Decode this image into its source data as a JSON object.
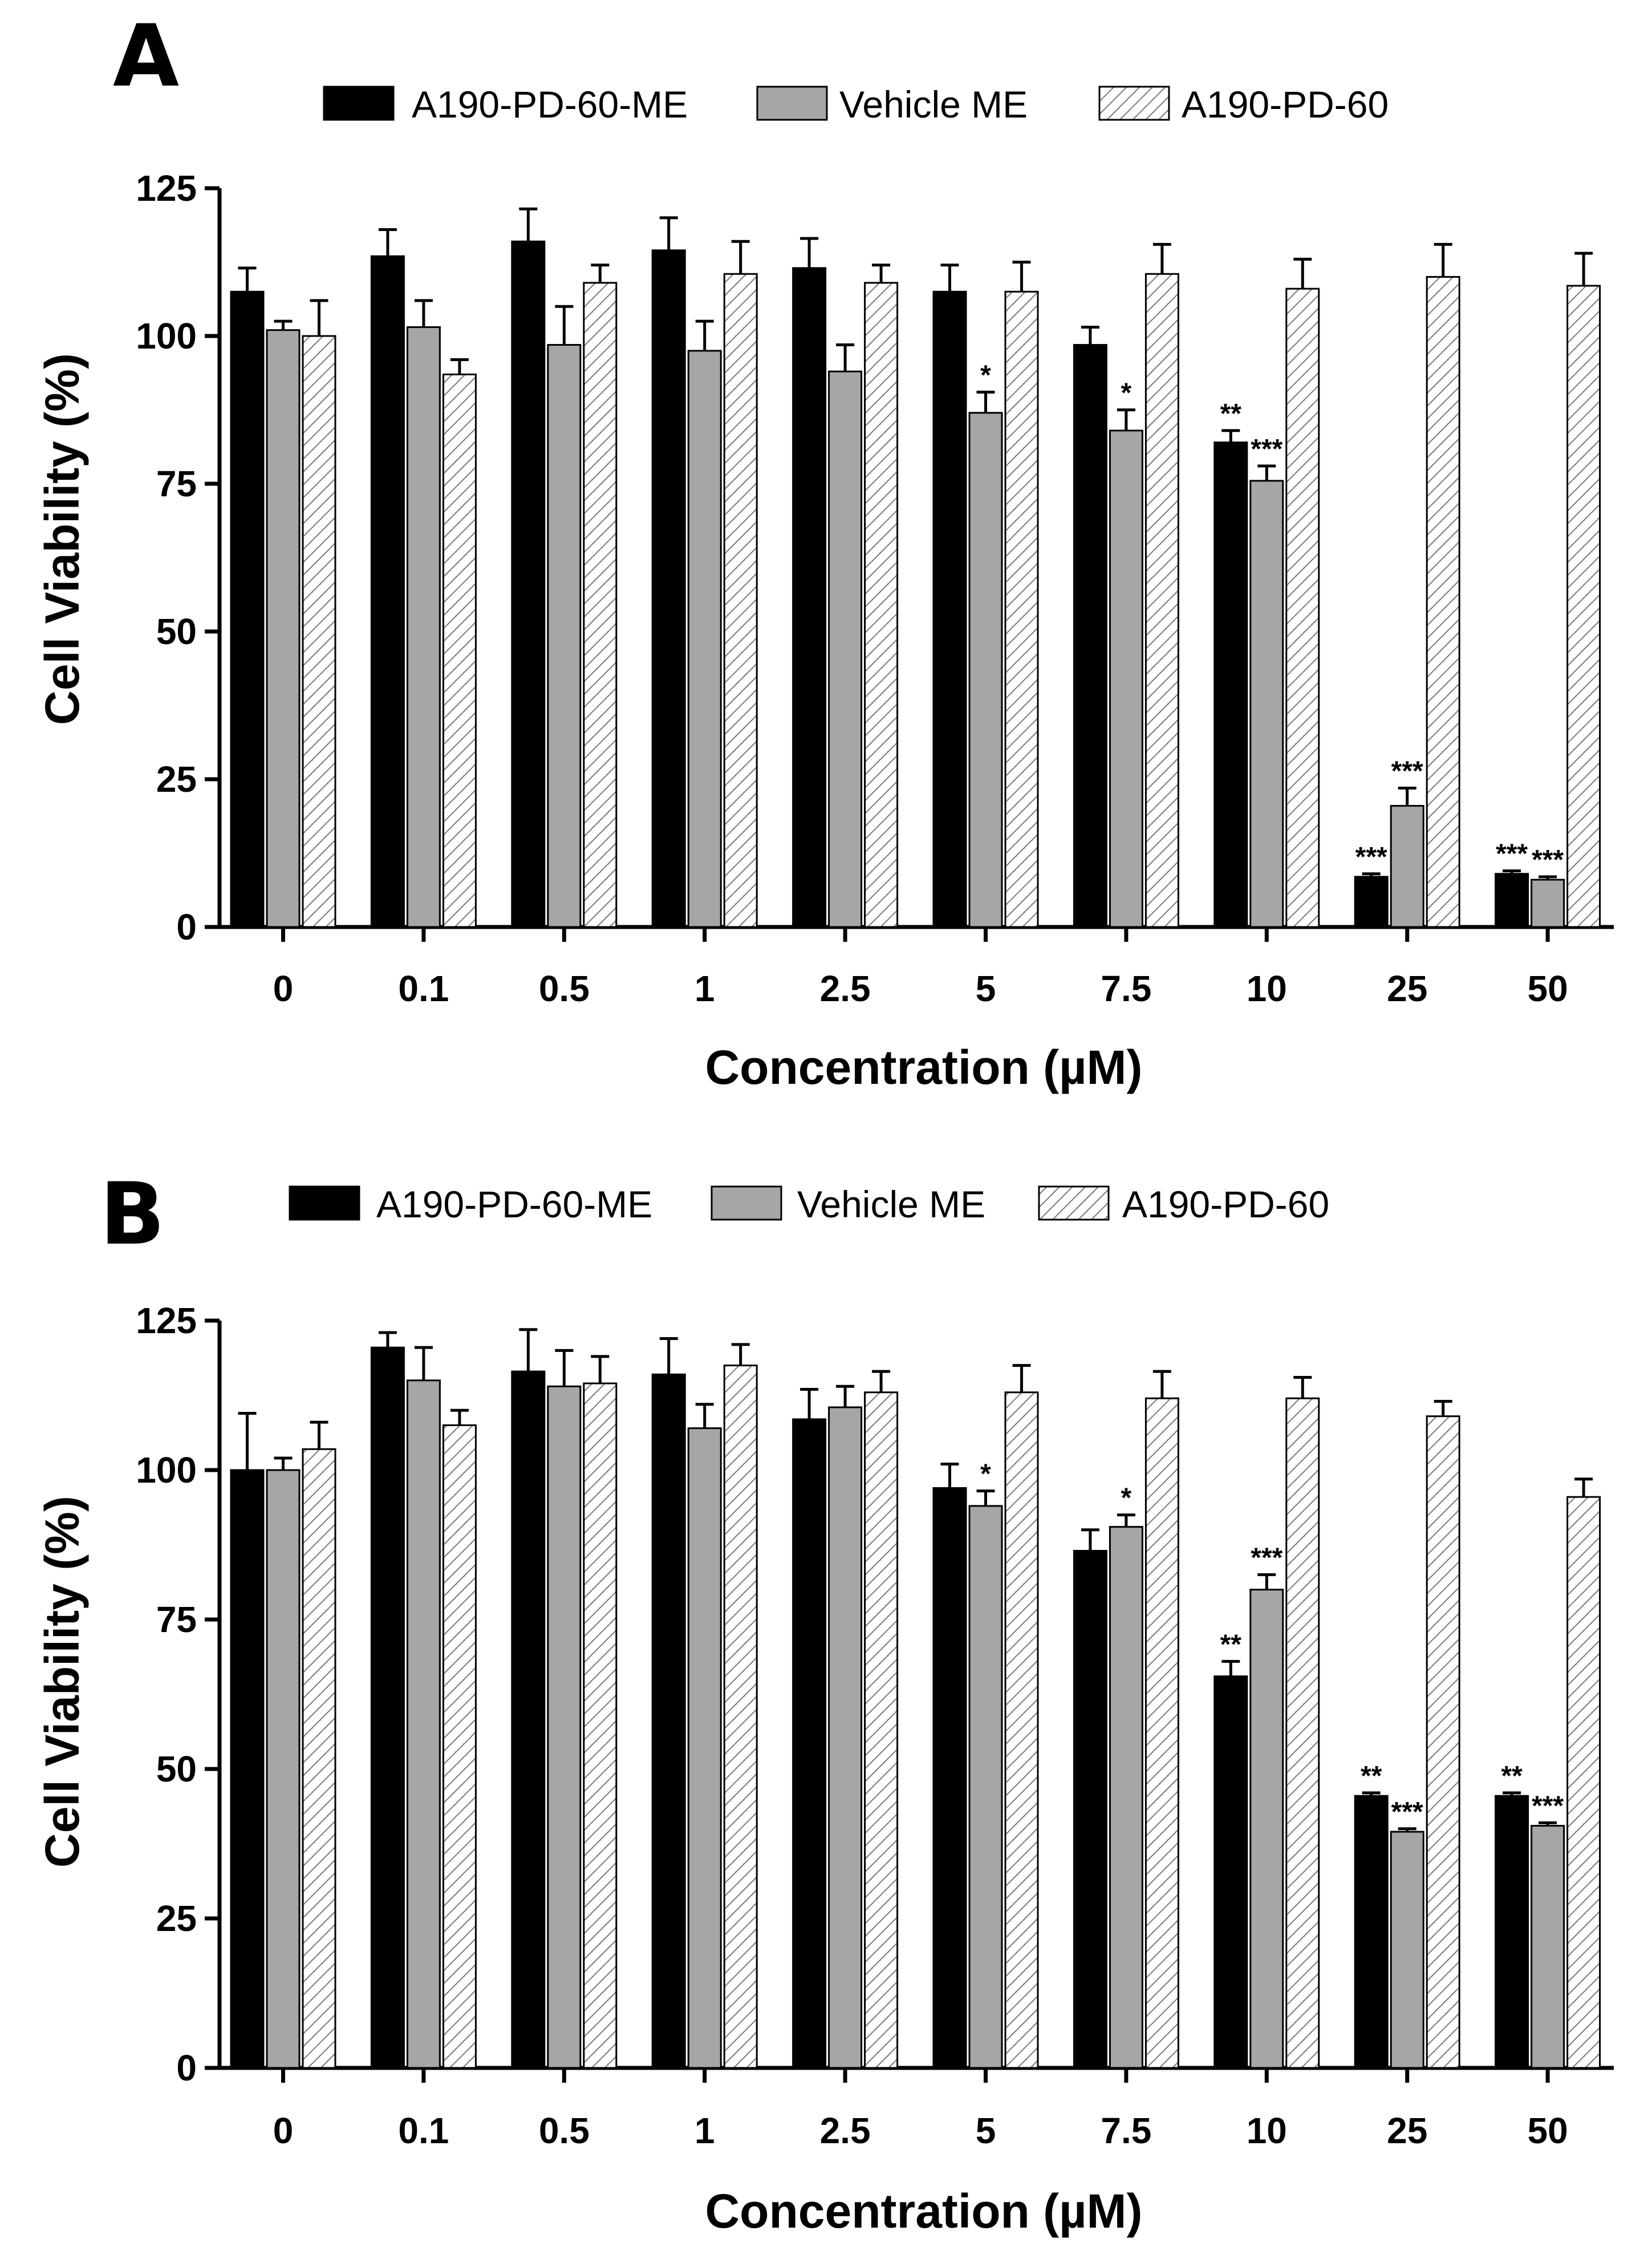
{
  "legend": {
    "items": [
      {
        "label": "A190-PD-60-ME",
        "style": "solid",
        "color": "#000000"
      },
      {
        "label": "Vehicle ME",
        "style": "solid",
        "color": "#a6a6a6"
      },
      {
        "label": "A190-PD-60",
        "style": "hatched",
        "color": "#ffffff"
      }
    ]
  },
  "chart_data": [
    {
      "panel": "A",
      "type": "bar",
      "categories": [
        "0",
        "0.1",
        "0.5",
        "1",
        "2.5",
        "5",
        "7.5",
        "10",
        "25",
        "50"
      ],
      "ylabel": "Cell Viability (%)",
      "xlabel": "Concentration (µM)",
      "ylim": [
        0,
        125
      ],
      "yticks": [
        "0",
        "25",
        "50",
        "75",
        "100",
        "125"
      ],
      "series": [
        {
          "name": "A190-PD-60-ME",
          "values": [
            107.5,
            113.5,
            116,
            114.5,
            111.5,
            107.5,
            98.5,
            82,
            8.5,
            9
          ],
          "errors": [
            4,
            4.5,
            5.5,
            5.5,
            5,
            4.5,
            3,
            2,
            0.5,
            0.5
          ],
          "sig": [
            "",
            "",
            "",
            "",
            "",
            "",
            "",
            "**",
            "***",
            "***"
          ]
        },
        {
          "name": "Vehicle ME",
          "values": [
            101,
            101.5,
            98.5,
            97.5,
            94,
            87,
            84,
            75.5,
            20.5,
            8
          ],
          "errors": [
            1.5,
            4.5,
            6.5,
            5,
            4.5,
            3.5,
            3.5,
            2.5,
            3,
            0.5
          ],
          "sig": [
            "",
            "",
            "",
            "",
            "",
            "*",
            "*",
            "***",
            "***",
            "***"
          ]
        },
        {
          "name": "A190-PD-60",
          "values": [
            100,
            93.5,
            109,
            110.5,
            109,
            107.5,
            110.5,
            108,
            110,
            108.5
          ],
          "errors": [
            6,
            2.5,
            3,
            5.5,
            3,
            5,
            5,
            5,
            5.5,
            5.5
          ],
          "sig": [
            "",
            "",
            "",
            "",
            "",
            "",
            "",
            "",
            "",
            ""
          ]
        }
      ]
    },
    {
      "panel": "B",
      "type": "bar",
      "categories": [
        "0",
        "0.1",
        "0.5",
        "1",
        "2.5",
        "5",
        "7.5",
        "10",
        "25",
        "50"
      ],
      "ylabel": "Cell Viability (%)",
      "xlabel": "Concentration (µM)",
      "ylim": [
        0,
        125
      ],
      "yticks": [
        "0",
        "25",
        "50",
        "75",
        "100",
        "125"
      ],
      "series": [
        {
          "name": "A190-PD-60-ME",
          "values": [
            100,
            120.5,
            116.5,
            116,
            108.5,
            97,
            86.5,
            65.5,
            45.5,
            45.5
          ],
          "errors": [
            9.5,
            2.5,
            7,
            6,
            5,
            4,
            3.5,
            2.5,
            0.5,
            0.5
          ],
          "sig": [
            "",
            "",
            "",
            "",
            "",
            "",
            "",
            "**",
            "**",
            "**"
          ]
        },
        {
          "name": "Vehicle ME",
          "values": [
            100,
            115,
            114,
            107,
            110.5,
            94,
            90.5,
            80,
            39.5,
            40.5
          ],
          "errors": [
            2,
            5.5,
            6,
            4,
            3.5,
            2.5,
            2,
            2.5,
            0.5,
            0.5
          ],
          "sig": [
            "",
            "",
            "",
            "",
            "",
            "*",
            "*",
            "***",
            "***",
            "***"
          ]
        },
        {
          "name": "A190-PD-60",
          "values": [
            103.5,
            107.5,
            114.5,
            117.5,
            113,
            113,
            112,
            112,
            109,
            95.5
          ],
          "errors": [
            4.5,
            2.5,
            4.5,
            3.5,
            3.5,
            4.5,
            4.5,
            3.5,
            2.5,
            3
          ],
          "sig": [
            "",
            "",
            "",
            "",
            "",
            "",
            "",
            "",
            "",
            ""
          ]
        }
      ]
    }
  ]
}
